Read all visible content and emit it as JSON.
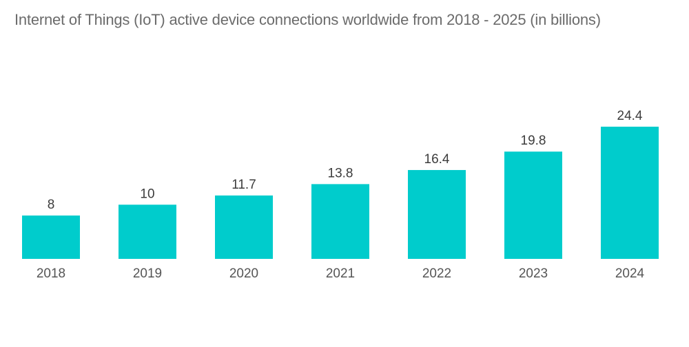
{
  "chart_data": {
    "type": "bar",
    "title": "Internet of Things (IoT) active device connections worldwide from 2018 - 2025 (in billions)",
    "xlabel": "",
    "ylabel": "",
    "categories": [
      "2018",
      "2019",
      "2020",
      "2021",
      "2022",
      "2023",
      "2024"
    ],
    "values": [
      8,
      10,
      11.7,
      13.8,
      16.4,
      19.8,
      24.4
    ],
    "value_labels": [
      "8",
      "10",
      "11.7",
      "13.8",
      "16.4",
      "19.8",
      "24.4"
    ],
    "ylim": [
      0,
      24.4
    ],
    "grid": false,
    "legend": "none",
    "bar_color": "#00CCCC"
  }
}
